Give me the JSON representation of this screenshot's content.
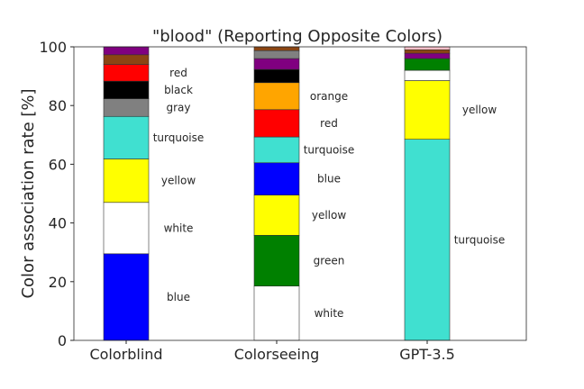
{
  "chart_data": {
    "type": "bar",
    "stacked": true,
    "title": "\"blood\" (Reporting Opposite Colors)",
    "ylabel": "Color association rate [%]",
    "xlabel": "",
    "ylim": [
      0,
      100
    ],
    "yticks": [
      "0",
      "20",
      "40",
      "60",
      "80",
      "100"
    ],
    "grid": false,
    "categories": [
      "Colorblind",
      "Colorseeing",
      "GPT-3.5"
    ],
    "bars": [
      {
        "category": "Colorblind",
        "segments": [
          {
            "color_name": "blue",
            "value": 29.5,
            "fill": "#0000ff",
            "label": "blue"
          },
          {
            "color_name": "white",
            "value": 17.5,
            "fill": "#ffffff",
            "label": "white"
          },
          {
            "color_name": "yellow",
            "value": 14.8,
            "fill": "#ffff00",
            "label": "yellow"
          },
          {
            "color_name": "turquoise",
            "value": 14.5,
            "fill": "#40e0d0",
            "label": "turquoise"
          },
          {
            "color_name": "gray",
            "value": 6.0,
            "fill": "#808080",
            "label": "gray"
          },
          {
            "color_name": "black",
            "value": 6.0,
            "fill": "#000000",
            "label": "black"
          },
          {
            "color_name": "red",
            "value": 5.7,
            "fill": "#ff0000",
            "label": "red"
          },
          {
            "color_name": "brown",
            "value": 3.3,
            "fill": "#8b4513",
            "label": ""
          },
          {
            "color_name": "purple",
            "value": 2.7,
            "fill": "#800080",
            "label": ""
          }
        ]
      },
      {
        "category": "Colorseeing",
        "segments": [
          {
            "color_name": "white",
            "value": 18.5,
            "fill": "#ffffff",
            "label": "white"
          },
          {
            "color_name": "green",
            "value": 17.3,
            "fill": "#008000",
            "label": "green"
          },
          {
            "color_name": "yellow",
            "value": 13.7,
            "fill": "#ffff00",
            "label": "yellow"
          },
          {
            "color_name": "blue",
            "value": 11.0,
            "fill": "#0000ff",
            "label": "blue"
          },
          {
            "color_name": "turquoise",
            "value": 8.8,
            "fill": "#40e0d0",
            "label": "turquoise"
          },
          {
            "color_name": "red",
            "value": 9.3,
            "fill": "#ff0000",
            "label": "red"
          },
          {
            "color_name": "orange",
            "value": 9.2,
            "fill": "#ffa500",
            "label": "orange"
          },
          {
            "color_name": "black",
            "value": 4.5,
            "fill": "#000000",
            "label": ""
          },
          {
            "color_name": "purple",
            "value": 3.7,
            "fill": "#800080",
            "label": ""
          },
          {
            "color_name": "gray",
            "value": 2.7,
            "fill": "#808080",
            "label": ""
          },
          {
            "color_name": "brown",
            "value": 1.3,
            "fill": "#8b4513",
            "label": ""
          }
        ]
      },
      {
        "category": "GPT-3.5",
        "segments": [
          {
            "color_name": "turquoise",
            "value": 68.5,
            "fill": "#40e0d0",
            "label": "turquoise"
          },
          {
            "color_name": "yellow",
            "value": 20.0,
            "fill": "#ffff00",
            "label": "yellow"
          },
          {
            "color_name": "white",
            "value": 3.5,
            "fill": "#ffffff",
            "label": ""
          },
          {
            "color_name": "green",
            "value": 4.0,
            "fill": "#008000",
            "label": ""
          },
          {
            "color_name": "purple",
            "value": 1.8,
            "fill": "#800080",
            "label": ""
          },
          {
            "color_name": "brown",
            "value": 1.2,
            "fill": "#8b4513",
            "label": ""
          },
          {
            "color_name": "pink",
            "value": 1.0,
            "fill": "#ffc0cb",
            "label": ""
          }
        ]
      }
    ]
  }
}
